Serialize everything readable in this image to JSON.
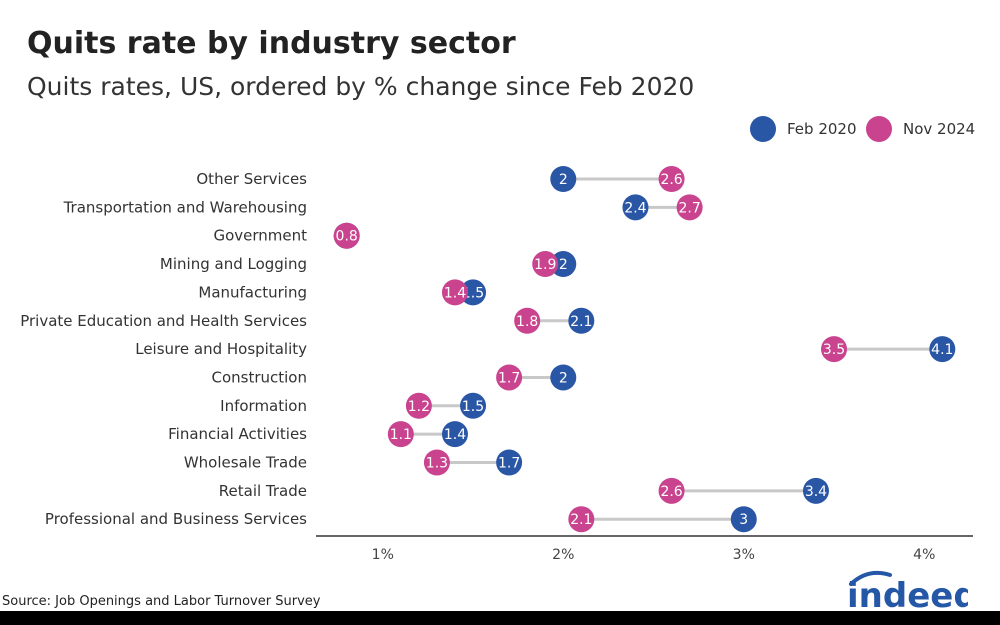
{
  "chart_data": {
    "type": "dumbbell",
    "title": "Quits rate by industry sector",
    "subtitle": "Quits rates, US, ordered by % change since Feb 2020",
    "xlabel": "",
    "ylabel": "",
    "xlim": [
      0.63,
      4.27
    ],
    "x_ticks": [
      {
        "value": 1,
        "label": "1%"
      },
      {
        "value": 2,
        "label": "2%"
      },
      {
        "value": 3,
        "label": "3%"
      },
      {
        "value": 4,
        "label": "4%"
      }
    ],
    "legend": {
      "placement": "top-right",
      "entries": [
        {
          "key": "feb",
          "label": "Feb 2020"
        },
        {
          "key": "nov",
          "label": "Nov 2024"
        }
      ]
    },
    "colors": {
      "feb": "#2a56a6",
      "nov": "#c9438f",
      "connector": "#c8c8c8",
      "axis": "#333333"
    },
    "categories": [
      {
        "label": "Other Services",
        "feb": 2.0,
        "nov": 2.6,
        "feb_label": "2",
        "nov_label": "2.6"
      },
      {
        "label": "Transportation and Warehousing",
        "feb": 2.4,
        "nov": 2.7,
        "feb_label": "2.4",
        "nov_label": "2.7"
      },
      {
        "label": "Government",
        "feb": 0.8,
        "nov": 0.8,
        "feb_label": "0.8",
        "nov_label": "0.8"
      },
      {
        "label": "Mining and Logging",
        "feb": 2.0,
        "nov": 1.9,
        "feb_label": "2",
        "nov_label": "1.9"
      },
      {
        "label": "Manufacturing",
        "feb": 1.5,
        "nov": 1.4,
        "feb_label": "1.5",
        "nov_label": "1.4"
      },
      {
        "label": "Private Education and Health Services",
        "feb": 2.1,
        "nov": 1.8,
        "feb_label": "2.1",
        "nov_label": "1.8"
      },
      {
        "label": "Leisure and Hospitality",
        "feb": 4.1,
        "nov": 3.5,
        "feb_label": "4.1",
        "nov_label": "3.5"
      },
      {
        "label": "Construction",
        "feb": 2.0,
        "nov": 1.7,
        "feb_label": "2",
        "nov_label": "1.7"
      },
      {
        "label": "Information",
        "feb": 1.5,
        "nov": 1.2,
        "feb_label": "1.5",
        "nov_label": "1.2"
      },
      {
        "label": "Financial Activities",
        "feb": 1.4,
        "nov": 1.1,
        "feb_label": "1.4",
        "nov_label": "1.1"
      },
      {
        "label": "Wholesale Trade",
        "feb": 1.7,
        "nov": 1.3,
        "feb_label": "1.7",
        "nov_label": "1.3"
      },
      {
        "label": "Retail Trade",
        "feb": 3.4,
        "nov": 2.6,
        "feb_label": "3.4",
        "nov_label": "2.6"
      },
      {
        "label": "Professional and Business Services",
        "feb": 3.0,
        "nov": 2.1,
        "feb_label": "3",
        "nov_label": "2.1"
      }
    ]
  },
  "footer": {
    "source": "Source: Job Openings and Labor Turnover Survey",
    "logo": "indeed"
  }
}
